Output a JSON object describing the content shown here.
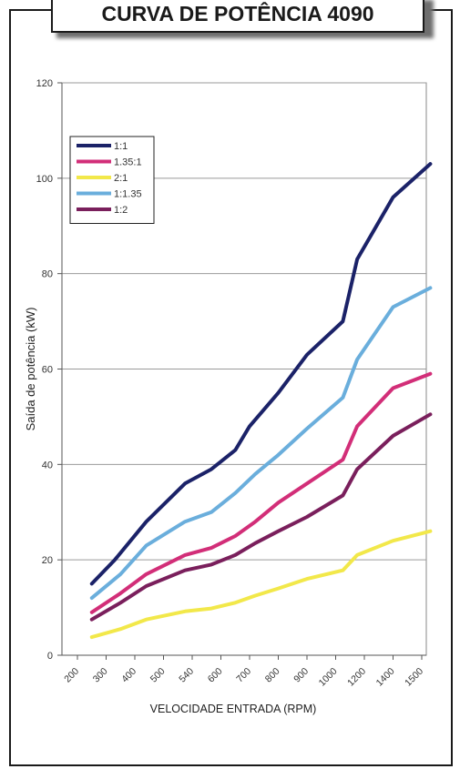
{
  "title": "CURVA DE POTÊNCIA 4090",
  "chart_data": {
    "type": "line",
    "title": "CURVA DE POTÊNCIA 4090",
    "xlabel": "VELOCIDADE ENTRADA (RPM)",
    "ylabel": "SAÍDA DE POTÊNCIA (KW)",
    "ylabel_display": "Saída de potência (kW)",
    "xlabel_display": "velocidade entrada (rpm)",
    "x_ticks": [
      "200",
      "300",
      "400",
      "500",
      "540",
      "600",
      "700",
      "800",
      "900",
      "1000",
      "1200",
      "1400",
      "1500"
    ],
    "x": [
      250,
      350,
      440,
      520,
      560,
      650,
      740,
      820,
      890,
      1050,
      1150,
      1420,
      1530
    ],
    "ylim": [
      0,
      120
    ],
    "y_ticks": [
      0,
      20,
      40,
      60,
      80,
      100,
      120
    ],
    "grid": true,
    "legend_position": "top-left",
    "series": [
      {
        "name": "1:1",
        "color": "#1b2268",
        "points": [
          [
            250,
            15
          ],
          [
            330,
            20
          ],
          [
            440,
            28
          ],
          [
            530,
            36
          ],
          [
            580,
            39
          ],
          [
            650,
            43
          ],
          [
            700,
            48
          ],
          [
            800,
            55
          ],
          [
            900,
            63
          ],
          [
            1050,
            70
          ],
          [
            1150,
            83
          ],
          [
            1400,
            96
          ],
          [
            1530,
            103
          ]
        ]
      },
      {
        "name": "1.35:1",
        "color": "#d22e78",
        "points": [
          [
            250,
            9
          ],
          [
            350,
            13
          ],
          [
            440,
            17
          ],
          [
            530,
            21
          ],
          [
            580,
            22.5
          ],
          [
            650,
            25
          ],
          [
            720,
            28
          ],
          [
            800,
            32
          ],
          [
            900,
            36
          ],
          [
            1050,
            41
          ],
          [
            1150,
            48
          ],
          [
            1400,
            56
          ],
          [
            1530,
            59
          ]
        ]
      },
      {
        "name": "2:1",
        "color": "#f2e84a",
        "points": [
          [
            250,
            3.8
          ],
          [
            350,
            5.5
          ],
          [
            440,
            7.5
          ],
          [
            530,
            9.2
          ],
          [
            580,
            9.8
          ],
          [
            650,
            11
          ],
          [
            720,
            12.5
          ],
          [
            800,
            14
          ],
          [
            900,
            16
          ],
          [
            1050,
            17.8
          ],
          [
            1150,
            21
          ],
          [
            1400,
            24
          ],
          [
            1530,
            26
          ]
        ]
      },
      {
        "name": "1:1.35",
        "color": "#6aaedc",
        "points": [
          [
            250,
            12
          ],
          [
            350,
            17
          ],
          [
            440,
            23
          ],
          [
            530,
            28
          ],
          [
            580,
            30
          ],
          [
            650,
            34
          ],
          [
            720,
            38
          ],
          [
            800,
            42
          ],
          [
            900,
            47.5
          ],
          [
            1050,
            54
          ],
          [
            1150,
            62
          ],
          [
            1400,
            73
          ],
          [
            1530,
            77
          ]
        ]
      },
      {
        "name": "1:2",
        "color": "#7a1f5c",
        "points": [
          [
            250,
            7.5
          ],
          [
            350,
            11
          ],
          [
            440,
            14.5
          ],
          [
            530,
            17.8
          ],
          [
            580,
            19
          ],
          [
            650,
            21
          ],
          [
            720,
            23.5
          ],
          [
            800,
            26
          ],
          [
            900,
            29
          ],
          [
            1050,
            33.5
          ],
          [
            1150,
            39
          ],
          [
            1400,
            46
          ],
          [
            1530,
            50.5
          ]
        ]
      }
    ]
  }
}
